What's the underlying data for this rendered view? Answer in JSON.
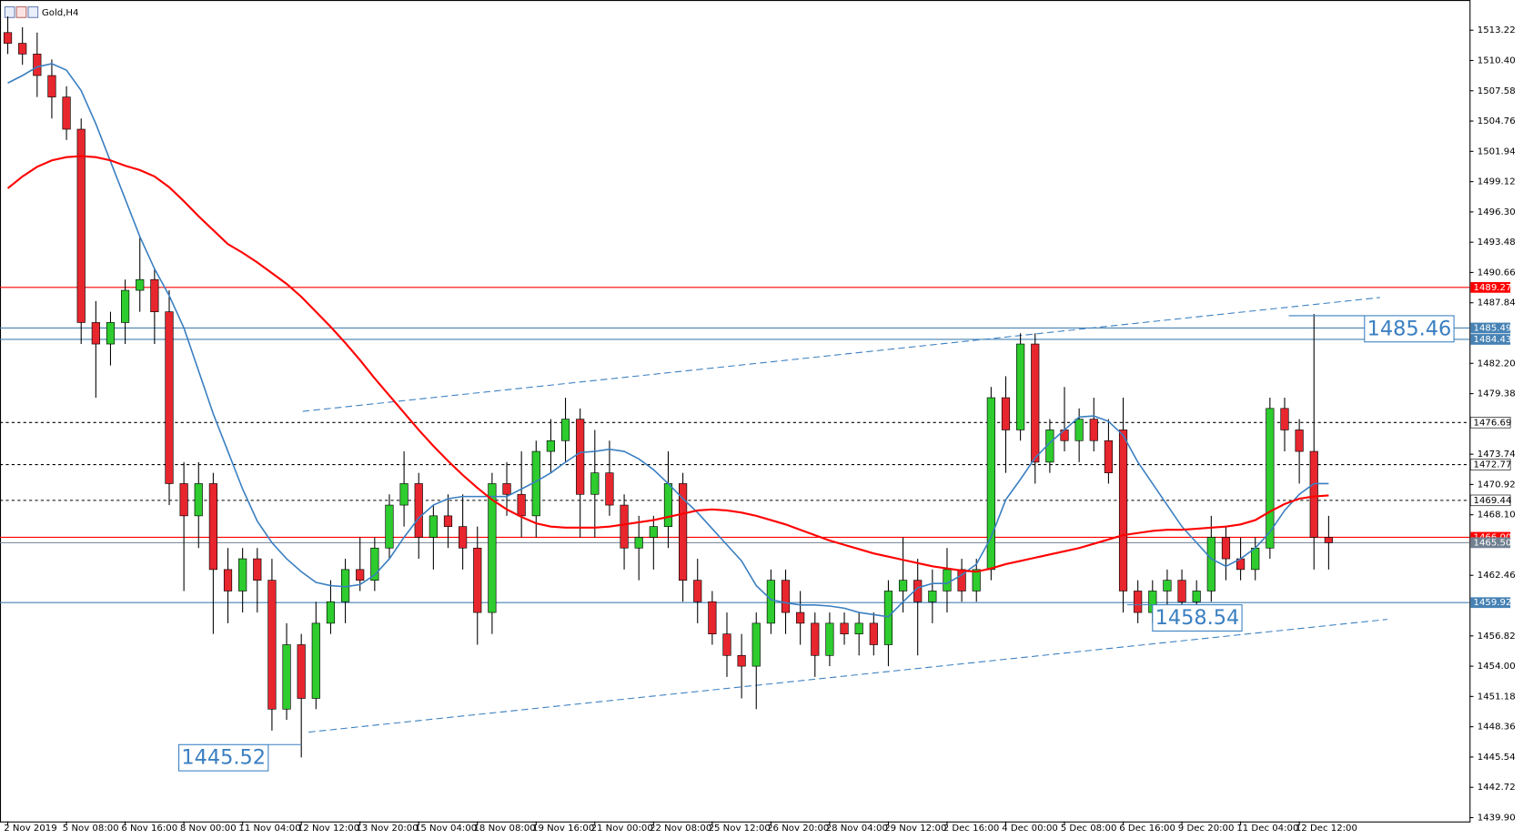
{
  "chart_data": {
    "type": "candlestick",
    "title": "Gold,H4",
    "ylim": [
      1439.54,
      1516.03
    ],
    "xlim": [
      -0.53,
      99.6
    ],
    "yticks": [
      1513.22,
      {
        "value": 1510.4,
        "label": "1510.40"
      },
      1507.58,
      1504.76,
      1501.94,
      1499.12,
      {
        "value": 1496.3,
        "label": "1496.30"
      },
      1493.48,
      1490.66,
      1487.84,
      {
        "value": 1482.2,
        "label": "1482.20"
      },
      1479.38,
      1473.74,
      1470.92,
      {
        "value": 1468.1,
        "label": "1468.10"
      },
      1462.46,
      1456.82,
      {
        "value": 1454.0,
        "label": "1454.00"
      },
      1451.18,
      1448.36,
      1445.54,
      1442.72,
      {
        "value": 1439.9,
        "label": "1439.90"
      }
    ],
    "xticks": [
      {
        "value": 0,
        "label": "2 Nov 2019"
      },
      {
        "value": 4,
        "label": "5 Nov 08:00"
      },
      {
        "value": 8,
        "label": "6 Nov 16:00"
      },
      {
        "value": 12,
        "label": "8 Nov 00:00"
      },
      {
        "value": 16,
        "label": "11 Nov 04:00"
      },
      {
        "value": 20,
        "label": "12 Nov 12:00"
      },
      {
        "value": 24,
        "label": "13 Nov 20:00"
      },
      {
        "value": 28,
        "label": "15 Nov 04:00"
      },
      {
        "value": 32,
        "label": "18 Nov 08:00"
      },
      {
        "value": 36,
        "label": "19 Nov 16:00"
      },
      {
        "value": 40,
        "label": "21 Nov 00:00"
      },
      {
        "value": 44,
        "label": "22 Nov 08:00"
      },
      {
        "value": 48,
        "label": "25 Nov 12:00"
      },
      {
        "value": 52,
        "label": "26 Nov 20:00"
      },
      {
        "value": 56,
        "label": "28 Nov 04:00"
      },
      {
        "value": 60,
        "label": "29 Nov 12:00"
      },
      {
        "value": 64,
        "label": "2 Dec 16:00"
      },
      {
        "value": 68,
        "label": "4 Dec 00:00"
      },
      {
        "value": 72,
        "label": "5 Dec 08:00"
      },
      {
        "value": 76,
        "label": "6 Dec 16:00"
      },
      {
        "value": 80,
        "label": "9 Dec 20:00"
      },
      {
        "value": 84,
        "label": "11 Dec 04:00"
      },
      {
        "value": 88,
        "label": "12 Dec 12:00"
      }
    ],
    "up_color": "#2ecc2e",
    "down_color": "#e8262e",
    "ohlc": [
      [
        1513,
        1514.5,
        1511,
        1512
      ],
      [
        1512,
        1513.5,
        1510,
        1511
      ],
      [
        1511,
        1513,
        1507,
        1509
      ],
      [
        1509,
        1510.5,
        1505,
        1507
      ],
      [
        1507,
        1508,
        1503,
        1504
      ],
      [
        1504,
        1505,
        1484,
        1486
      ],
      [
        1486,
        1488,
        1479,
        1484
      ],
      [
        1484,
        1487,
        1482,
        1486
      ],
      [
        1486,
        1490,
        1484,
        1489
      ],
      [
        1489,
        1494,
        1487,
        1490
      ],
      [
        1490,
        1491,
        1484,
        1487
      ],
      [
        1487,
        1489,
        1469,
        1471
      ],
      [
        1471,
        1473,
        1461,
        1468
      ],
      [
        1468,
        1473,
        1465,
        1471
      ],
      [
        1471,
        1472,
        1457,
        1463
      ],
      [
        1463,
        1465,
        1458,
        1461
      ],
      [
        1461,
        1465,
        1459,
        1464
      ],
      [
        1464,
        1465,
        1459,
        1462
      ],
      [
        1462,
        1464,
        1448,
        1450
      ],
      [
        1450,
        1458,
        1449,
        1456
      ],
      [
        1456,
        1457,
        1445.5,
        1451
      ],
      [
        1451,
        1460,
        1450,
        1458
      ],
      [
        1458,
        1462,
        1457,
        1460
      ],
      [
        1460,
        1464,
        1458,
        1463
      ],
      [
        1463,
        1466,
        1461,
        1462
      ],
      [
        1462,
        1466,
        1461,
        1465
      ],
      [
        1465,
        1470,
        1464,
        1469
      ],
      [
        1469,
        1474,
        1467,
        1471
      ],
      [
        1471,
        1472,
        1464,
        1466
      ],
      [
        1466,
        1469,
        1463,
        1468
      ],
      [
        1468,
        1470,
        1465,
        1467
      ],
      [
        1467,
        1470,
        1463,
        1465
      ],
      [
        1465,
        1467,
        1456,
        1459
      ],
      [
        1459,
        1472,
        1457,
        1471
      ],
      [
        1471,
        1473,
        1468,
        1470
      ],
      [
        1470,
        1474,
        1466,
        1468
      ],
      [
        1468,
        1475,
        1466,
        1474
      ],
      [
        1474,
        1477,
        1472,
        1475
      ],
      [
        1475,
        1479,
        1473,
        1477
      ],
      [
        1477,
        1478,
        1466,
        1470
      ],
      [
        1470,
        1476,
        1466,
        1472
      ],
      [
        1472,
        1475,
        1468,
        1469
      ],
      [
        1469,
        1470,
        1463,
        1465
      ],
      [
        1465,
        1468,
        1462,
        1466
      ],
      [
        1466,
        1468,
        1463,
        1467
      ],
      [
        1467,
        1474,
        1465,
        1471
      ],
      [
        1471,
        1472,
        1460,
        1462
      ],
      [
        1462,
        1464,
        1458,
        1460
      ],
      [
        1460,
        1461,
        1456,
        1457
      ],
      [
        1457,
        1459,
        1453,
        1455
      ],
      [
        1455,
        1457,
        1451,
        1454
      ],
      [
        1454,
        1459,
        1450,
        1458
      ],
      [
        1458,
        1463,
        1457,
        1462
      ],
      [
        1462,
        1463,
        1457,
        1459
      ],
      [
        1459,
        1461,
        1456,
        1458
      ],
      [
        1458,
        1459,
        1453,
        1455
      ],
      [
        1455,
        1459,
        1454,
        1458
      ],
      [
        1458,
        1459,
        1456,
        1457
      ],
      [
        1457,
        1459,
        1455,
        1458
      ],
      [
        1458,
        1459,
        1455,
        1456
      ],
      [
        1456,
        1462,
        1454,
        1461
      ],
      [
        1461,
        1466,
        1459,
        1462
      ],
      [
        1462,
        1464,
        1455,
        1460
      ],
      [
        1460,
        1463,
        1458,
        1461
      ],
      [
        1461,
        1465,
        1459,
        1463
      ],
      [
        1463,
        1464,
        1460,
        1461
      ],
      [
        1461,
        1464,
        1460,
        1463
      ],
      [
        1463,
        1480,
        1462,
        1479
      ],
      [
        1479,
        1481,
        1472,
        1476
      ],
      [
        1476,
        1485,
        1475,
        1484
      ],
      [
        1484,
        1485,
        1471,
        1473
      ],
      [
        1473,
        1477,
        1472,
        1476
      ],
      [
        1476,
        1480,
        1474,
        1475
      ],
      [
        1475,
        1478,
        1473,
        1477
      ],
      [
        1477,
        1479,
        1474,
        1475
      ],
      [
        1475,
        1477,
        1471,
        1472
      ],
      [
        1476,
        1479,
        1459,
        1461
      ],
      [
        1461,
        1462,
        1458,
        1459
      ],
      [
        1459,
        1462,
        1458,
        1461
      ],
      [
        1461,
        1463,
        1459,
        1462
      ],
      [
        1462,
        1463,
        1459,
        1460
      ],
      [
        1460,
        1462,
        1458,
        1461
      ],
      [
        1461,
        1468,
        1460,
        1466
      ],
      [
        1466,
        1467,
        1462,
        1464
      ],
      [
        1464,
        1466,
        1462,
        1463
      ],
      [
        1463,
        1466,
        1462,
        1465
      ],
      [
        1465,
        1479,
        1464,
        1478
      ],
      [
        1478,
        1479,
        1474,
        1476
      ],
      [
        1476,
        1477,
        1471,
        1474
      ],
      [
        1474,
        1486.8,
        1463,
        1466
      ],
      [
        1466,
        1468,
        1463,
        1465.5
      ]
    ],
    "series": [
      {
        "color": "#3a7fc1",
        "values": [
          1508.3,
          1509,
          1509.8,
          1510.1,
          1509.5,
          1507.6,
          1504.5,
          1501,
          1497.5,
          1494,
          1491,
          1488.5,
          1485.5,
          1481.5,
          1477.5,
          1474,
          1470.5,
          1467.5,
          1465.5,
          1464,
          1462.8,
          1461.8,
          1461.5,
          1461.4,
          1461.6,
          1462.5,
          1464,
          1466,
          1467.8,
          1469,
          1469.6,
          1469.8,
          1469.8,
          1469.8,
          1469.8,
          1470.5,
          1471.2,
          1472,
          1473,
          1473.9,
          1474,
          1474.2,
          1474,
          1473.3,
          1472.3,
          1471,
          1469.6,
          1468.3,
          1466.8,
          1465.3,
          1463.8,
          1461.5,
          1460.2,
          1459.9,
          1459.7,
          1459.7,
          1459.6,
          1459.4,
          1459,
          1458.8,
          1458.6,
          1460,
          1461.3,
          1461.7,
          1461.7,
          1462.5,
          1463.5,
          1466,
          1469.5,
          1471.4,
          1473.4,
          1474.8,
          1476,
          1477.2,
          1477.3,
          1476.8,
          1475.5,
          1473,
          1471,
          1469,
          1467,
          1465.5,
          1464,
          1463.3,
          1464,
          1465,
          1466.5,
          1468.5,
          1470,
          1471,
          1471
        ]
      },
      {
        "color": "#ff0000",
        "values": [
          1498.5,
          1499.6,
          1500.5,
          1501.1,
          1501.4,
          1501.5,
          1501.4,
          1501.1,
          1500.6,
          1500.2,
          1499.6,
          1498.6,
          1497.3,
          1495.9,
          1494.6,
          1493.3,
          1492.5,
          1491.6,
          1490.6,
          1489.6,
          1488.4,
          1487,
          1485.6,
          1484.1,
          1482.5,
          1480.8,
          1479.2,
          1477.6,
          1476,
          1474.5,
          1473.1,
          1471.8,
          1470.6,
          1469.5,
          1468.6,
          1467.9,
          1467.3,
          1467,
          1466.9,
          1466.9,
          1466.9,
          1467,
          1467.2,
          1467.4,
          1467.6,
          1467.9,
          1468.2,
          1468.5,
          1468.6,
          1468.5,
          1468.3,
          1468,
          1467.6,
          1467.2,
          1466.7,
          1466.2,
          1465.7,
          1465.3,
          1464.9,
          1464.5,
          1464.2,
          1463.9,
          1463.6,
          1463.3,
          1463.1,
          1462.9,
          1462.8,
          1463.1,
          1463.5,
          1463.8,
          1464.1,
          1464.4,
          1464.7,
          1465,
          1465.4,
          1465.8,
          1466.2,
          1466.4,
          1466.6,
          1466.7,
          1466.7,
          1466.8,
          1466.9,
          1467,
          1467.2,
          1467.6,
          1468.4,
          1469.1,
          1469.6,
          1469.8,
          1469.9
        ]
      }
    ],
    "levels": [
      {
        "value": 1489.27,
        "label": "1489.27",
        "color": "#ff0000",
        "dashed": false
      },
      {
        "value": 1485.49,
        "label": "1485.49",
        "color": "#4682b4",
        "dashed": false
      },
      {
        "value": 1484.43,
        "label": "1484.43",
        "color": "#4682b4",
        "dashed": false
      },
      {
        "value": 1476.69,
        "label": "1476.69",
        "color": "#000000",
        "dashed": true
      },
      {
        "value": 1472.77,
        "label": "1472.77",
        "color": "#000000",
        "dashed": true
      },
      {
        "value": 1469.44,
        "label": "1469.44",
        "color": "#000000",
        "dashed": true
      },
      {
        "value": 1466.0,
        "label": "1466.00",
        "color": "#ff0000",
        "dashed": false
      },
      {
        "value": 1465.5,
        "label": "1465.50",
        "color": "#708090",
        "dashed": false
      },
      {
        "value": 1459.92,
        "label": "1459.92",
        "color": "#4682b4",
        "dashed": false
      }
    ],
    "trendlines": [
      {
        "x": [
          20.1,
          93.5
        ],
        "y": [
          1477.73,
          1488.33
        ]
      },
      {
        "x": [
          20.5,
          94.0
        ],
        "y": [
          1447.86,
          1458.36
        ]
      }
    ],
    "trend_color": "#3a7fc1",
    "annotations": [
      {
        "value": 1485.46,
        "x": 89
      },
      {
        "value": 1458.54,
        "x": 78
      },
      {
        "value": 1445.52,
        "x": 20
      }
    ]
  }
}
